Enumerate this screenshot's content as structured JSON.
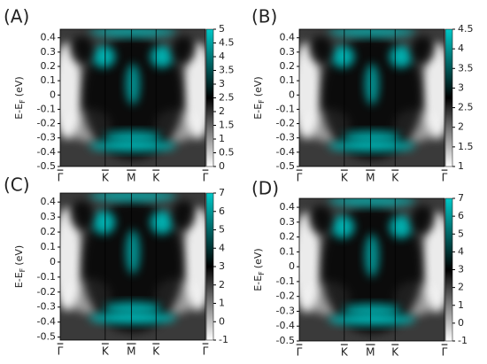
{
  "chart_data": [
    {
      "type": "heatmap",
      "label": "(A)",
      "ylabel": {
        "main": "E-E",
        "sub": "F",
        "unit": "(eV)"
      },
      "categories": [
        "Γ",
        "K",
        "M",
        "K",
        "Γ"
      ],
      "ylim": [
        -0.5,
        0.46
      ],
      "yticks": [
        0.4,
        0.3,
        0.2,
        0.1,
        0,
        -0.1,
        -0.2,
        -0.3,
        -0.4,
        -0.5
      ],
      "zlim": [
        0,
        5
      ],
      "zticks": [
        0,
        0.5,
        1,
        1.5,
        2,
        2.5,
        3,
        3.5,
        4,
        4.5,
        5
      ],
      "colormap": [
        "#ffffff",
        "#000000",
        "#00c8c8"
      ]
    },
    {
      "type": "heatmap",
      "label": "(B)",
      "ylabel": {
        "main": "E-E",
        "sub": "F",
        "unit": "(eV)"
      },
      "categories": [
        "Γ",
        "K",
        "M",
        "K",
        "Γ"
      ],
      "ylim": [
        -0.5,
        0.46
      ],
      "yticks": [
        0.4,
        0.3,
        0.2,
        0.1,
        0,
        -0.1,
        -0.2,
        -0.3,
        -0.4,
        -0.5
      ],
      "zlim": [
        1,
        4.5
      ],
      "zticks": [
        1,
        1.5,
        2,
        2.5,
        3,
        3.5,
        4,
        4.5
      ],
      "colormap": [
        "#ffffff",
        "#000000",
        "#00c8c8"
      ]
    },
    {
      "type": "heatmap",
      "label": "(C)",
      "ylabel": {
        "main": "E-E",
        "sub": "F",
        "unit": "(eV)"
      },
      "categories": [
        "Γ",
        "K",
        "M",
        "K",
        "Γ"
      ],
      "ylim": [
        -0.52,
        0.46
      ],
      "yticks": [
        0.4,
        0.3,
        0.2,
        0.1,
        0,
        -0.1,
        -0.2,
        -0.3,
        -0.4,
        -0.5
      ],
      "zlim": [
        -1,
        7
      ],
      "zticks": [
        -1,
        0,
        1,
        2,
        3,
        4,
        5,
        6,
        7
      ],
      "colormap": [
        "#ffffff",
        "#000000",
        "#00c8c8"
      ]
    },
    {
      "type": "heatmap",
      "label": "(D)",
      "ylabel": {
        "main": "E-E",
        "sub": "F",
        "unit": "(eV)"
      },
      "categories": [
        "Γ",
        "K",
        "M",
        "K",
        "Γ"
      ],
      "ylim": [
        -0.5,
        0.46
      ],
      "yticks": [
        0.4,
        0.3,
        0.2,
        0.1,
        0,
        -0.1,
        -0.2,
        -0.3,
        -0.4,
        -0.5
      ],
      "zlim": [
        -1,
        7
      ],
      "zticks": [
        -1,
        0,
        1,
        2,
        3,
        4,
        5,
        6,
        7
      ],
      "colormap": [
        "#ffffff",
        "#000000",
        "#00c8c8"
      ]
    }
  ]
}
